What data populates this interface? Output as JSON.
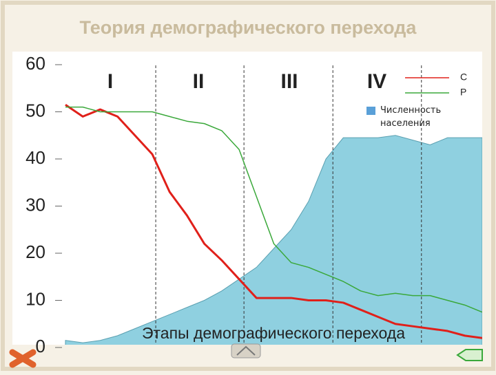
{
  "chart_data": {
    "type": "line",
    "title": "Теория демографического перехода",
    "annotation": "Этапы демографического перехода",
    "stages": [
      "I",
      "II",
      "III",
      "IV"
    ],
    "categories": [
      null,
      null,
      null,
      null,
      null,
      null,
      null,
      null,
      null,
      null,
      null,
      null,
      null,
      null,
      null,
      null,
      null,
      null,
      null,
      null,
      null,
      null,
      null,
      null,
      null
    ],
    "series": [
      {
        "name": "Численность населения",
        "color": "#8fd0e0",
        "kind": "area",
        "values": [
          1.5,
          1,
          1.5,
          2.5,
          4,
          5.5,
          7,
          8.5,
          10,
          12,
          14.5,
          17,
          21,
          25,
          31,
          40,
          44.5,
          44.5,
          44.5,
          45,
          44,
          43,
          44.5,
          44.5,
          44.5
        ]
      },
      {
        "name": "С",
        "color": "#e0201a",
        "values": [
          51.5,
          49,
          50.5,
          49,
          45,
          41,
          33,
          28,
          22,
          18.5,
          14.5,
          10.5,
          10.5,
          10.5,
          10,
          10,
          9.5,
          8,
          6.5,
          5,
          4.5,
          4,
          3.5,
          2.5,
          2
        ]
      },
      {
        "name": "Р",
        "color": "#3aa83a",
        "values": [
          51,
          51,
          50,
          50,
          50,
          50,
          49,
          48,
          47.5,
          46,
          42,
          32,
          22,
          18,
          17,
          15.5,
          14,
          12,
          11,
          11.5,
          11,
          11,
          10,
          9,
          7.5
        ]
      }
    ],
    "ylim": [
      0,
      60
    ],
    "yticks": [
      0,
      10,
      20,
      30,
      40,
      50,
      60
    ]
  }
}
